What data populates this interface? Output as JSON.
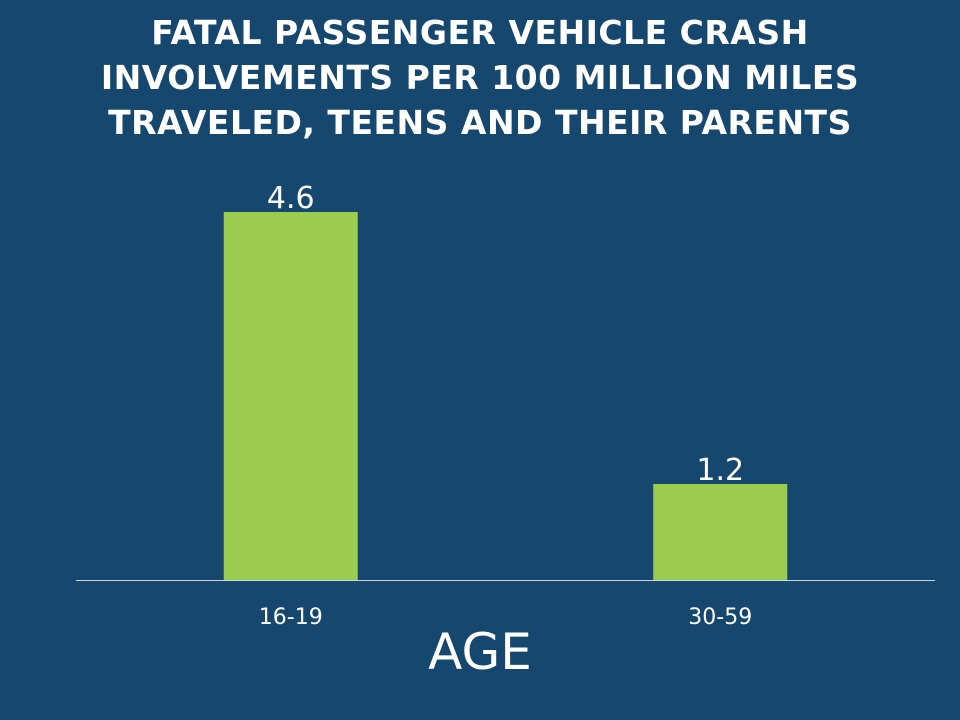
{
  "title_lines": [
    "FATAL PASSENGER VEHICLE CRASH",
    "INVOLVEMENTS PER 100 MILLION MILES",
    "TRAVELED, TEENS AND THEIR PARENTS"
  ],
  "colors": {
    "background": "#16476e",
    "bar": "#9bcb4f",
    "axis": "#c9d6e2",
    "text": "#ffffff"
  },
  "chart_data": {
    "type": "bar",
    "title": "FATAL PASSENGER VEHICLE CRASH INVOLVEMENTS PER 100 MILLION MILES TRAVELED, TEENS AND THEIR PARENTS",
    "categories": [
      "16-19",
      "30-59"
    ],
    "values": [
      4.6,
      1.2
    ],
    "data_labels": [
      "4.6",
      "1.2"
    ],
    "xlabel": "AGE",
    "ylabel": "",
    "ylim": [
      0,
      5
    ],
    "grid": false,
    "legend": "none"
  }
}
